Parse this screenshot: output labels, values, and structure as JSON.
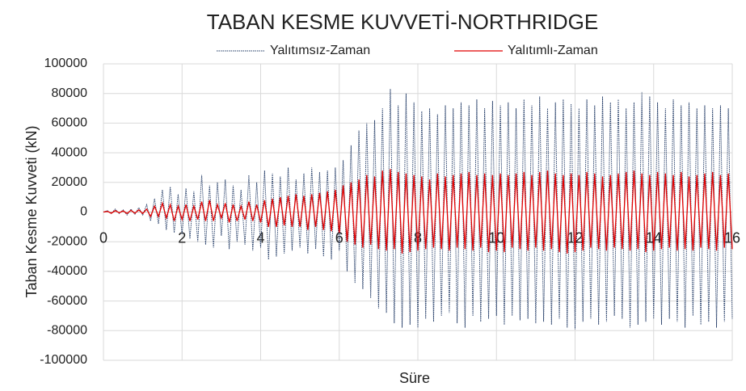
{
  "chart_data": {
    "type": "line",
    "title": "TABAN KESME KUVVETİ-NORTHRIDGE",
    "x_label": "Süre",
    "y_label": "Taban Kesme Kuvveti (kN)",
    "legend": "top",
    "grid": true,
    "xlim": [
      0,
      16
    ],
    "xticks": [
      0,
      2,
      4,
      6,
      8,
      10,
      12,
      14,
      16
    ],
    "ylim": [
      -100000,
      100000
    ],
    "yticks": [
      -100000,
      -80000,
      -60000,
      -40000,
      -20000,
      0,
      20000,
      40000,
      60000,
      80000,
      100000
    ],
    "x": [
      0,
      0.1,
      0.2,
      0.3,
      0.4,
      0.5,
      0.6,
      0.7,
      0.8,
      0.9,
      1,
      1.1,
      1.2,
      1.3,
      1.4,
      1.5,
      1.6,
      1.7,
      1.8,
      1.9,
      2,
      2.1,
      2.2,
      2.3,
      2.4,
      2.5,
      2.6,
      2.7,
      2.8,
      2.9,
      3,
      3.1,
      3.2,
      3.3,
      3.4,
      3.5,
      3.6,
      3.7,
      3.8,
      3.9,
      4,
      4.1,
      4.2,
      4.3,
      4.4,
      4.5,
      4.6,
      4.7,
      4.8,
      4.9,
      5,
      5.1,
      5.2,
      5.3,
      5.4,
      5.5,
      5.6,
      5.7,
      5.8,
      5.9,
      6,
      6.1,
      6.2,
      6.3,
      6.4,
      6.5,
      6.6,
      6.7,
      6.8,
      6.9,
      7,
      7.1,
      7.2,
      7.3,
      7.4,
      7.5,
      7.6,
      7.7,
      7.8,
      7.9,
      8,
      8.1,
      8.2,
      8.3,
      8.4,
      8.5,
      8.6,
      8.7,
      8.8,
      8.9,
      9,
      9.1,
      9.2,
      9.3,
      9.4,
      9.5,
      9.6,
      9.7,
      9.8,
      9.9,
      10,
      10.1,
      10.2,
      10.3,
      10.4,
      10.5,
      10.6,
      10.7,
      10.8,
      10.9,
      11,
      11.1,
      11.2,
      11.3,
      11.4,
      11.5,
      11.6,
      11.7,
      11.8,
      11.9,
      12,
      12.1,
      12.2,
      12.3,
      12.4,
      12.5,
      12.6,
      12.7,
      12.8,
      12.9,
      13,
      13.1,
      13.2,
      13.3,
      13.4,
      13.5,
      13.6,
      13.7,
      13.8,
      13.9,
      14,
      14.1,
      14.2,
      14.3,
      14.4,
      14.5,
      14.6,
      14.7,
      14.8,
      14.9,
      15,
      15.1,
      15.2,
      15.3,
      15.4,
      15.5,
      15.6,
      15.7,
      15.8,
      15.9,
      16
    ],
    "series": [
      {
        "name": "Yalıtımsız-Zaman",
        "color": "#1f3864",
        "dash": true,
        "values": [
          0,
          1000,
          -1000,
          2000,
          -1000,
          1500,
          -2000,
          2000,
          -1500,
          3000,
          -2000,
          5000,
          -6000,
          9000,
          -8000,
          15000,
          -12000,
          17000,
          -14000,
          12000,
          -15000,
          16000,
          -18000,
          14000,
          -20000,
          25000,
          -22000,
          18000,
          -24000,
          20000,
          -16000,
          22000,
          -25000,
          18000,
          -20000,
          15000,
          -22000,
          25000,
          -26000,
          20000,
          -24000,
          28000,
          -32000,
          26000,
          -30000,
          24000,
          -28000,
          30000,
          -26000,
          22000,
          -24000,
          26000,
          -28000,
          30000,
          -25000,
          27000,
          -30000,
          28000,
          -32000,
          30000,
          -26000,
          35000,
          -40000,
          45000,
          -48000,
          55000,
          -52000,
          60000,
          -58000,
          62000,
          -65000,
          70000,
          -68000,
          83000,
          -75000,
          72000,
          -78000,
          80000,
          -76000,
          74000,
          -78000,
          68000,
          -72000,
          70000,
          -74000,
          66000,
          -70000,
          72000,
          -68000,
          70000,
          -75000,
          74000,
          -78000,
          72000,
          -70000,
          76000,
          -74000,
          70000,
          -72000,
          75000,
          -70000,
          72000,
          -76000,
          74000,
          -70000,
          70000,
          -73000,
          76000,
          -72000,
          72000,
          -75000,
          78000,
          -74000,
          70000,
          -76000,
          74000,
          -72000,
          76000,
          -78000,
          73000,
          -79000,
          70000,
          -74000,
          76000,
          -72000,
          72000,
          -76000,
          78000,
          -74000,
          74000,
          -70000,
          76000,
          -72000,
          70000,
          -78000,
          74000,
          -76000,
          81000,
          -74000,
          78000,
          -72000,
          74000,
          -76000,
          70000,
          -72000,
          76000,
          -74000,
          72000,
          -78000,
          74000,
          -70000,
          70000,
          -76000,
          72000,
          -74000,
          70000,
          -78000,
          72000,
          -74000,
          70000,
          -72000
        ]
      },
      {
        "name": "Yalıtımlı-Zaman",
        "color": "#e00000",
        "dash": false,
        "values": [
          0,
          500,
          -800,
          1000,
          -500,
          800,
          -1000,
          1200,
          -800,
          1500,
          -1000,
          2000,
          -3000,
          4000,
          -3000,
          6000,
          -4000,
          5000,
          -6000,
          4000,
          -5000,
          5000,
          -6000,
          4000,
          -5000,
          7000,
          -6000,
          8000,
          -6000,
          5000,
          -4000,
          6000,
          -7000,
          5000,
          -6000,
          4000,
          -5000,
          7000,
          -6000,
          5000,
          -7000,
          8000,
          -10000,
          9000,
          -10000,
          10000,
          -9000,
          11000,
          -10000,
          12000,
          -10000,
          11000,
          -12000,
          12000,
          -10000,
          13000,
          -12000,
          14000,
          -13000,
          15000,
          -14000,
          18000,
          -20000,
          20000,
          -22000,
          22000,
          -24000,
          25000,
          -22000,
          24000,
          -25000,
          28000,
          -26000,
          29000,
          -25000,
          27000,
          -28000,
          26000,
          -27000,
          25000,
          -26000,
          24000,
          -25000,
          22000,
          -24000,
          26000,
          -25000,
          24000,
          -26000,
          25000,
          -24000,
          26000,
          -25000,
          27000,
          -26000,
          25000,
          -24000,
          26000,
          -27000,
          25000,
          -26000,
          26000,
          -27000,
          25000,
          -24000,
          26000,
          -25000,
          27000,
          -26000,
          25000,
          -24000,
          27000,
          -26000,
          28000,
          -25000,
          26000,
          -27000,
          25000,
          -28000,
          26000,
          -27000,
          25000,
          -26000,
          27000,
          -24000,
          26000,
          -25000,
          24000,
          -26000,
          25000,
          -24000,
          26000,
          -25000,
          27000,
          -26000,
          28000,
          -25000,
          26000,
          -27000,
          25000,
          -26000,
          27000,
          -25000,
          26000,
          -24000,
          25000,
          -26000,
          27000,
          -25000,
          24000,
          -26000,
          25000,
          -24000,
          26000,
          -25000,
          27000,
          -26000,
          25000,
          -24000,
          26000,
          -25000
        ]
      }
    ]
  }
}
